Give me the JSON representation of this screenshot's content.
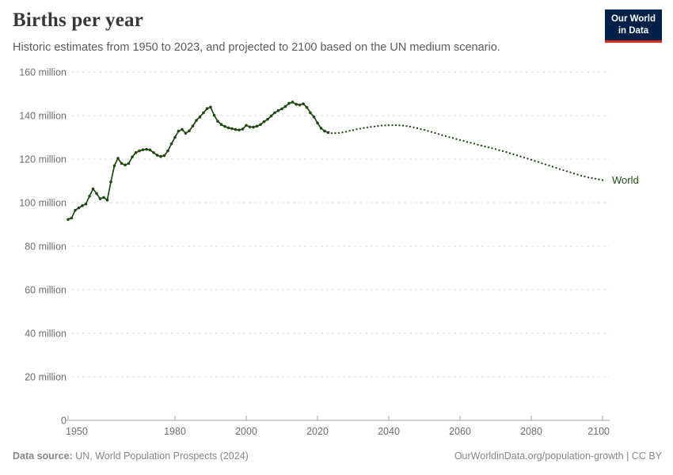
{
  "header": {
    "title": "Births per year",
    "subtitle": "Historic estimates from 1950 to 2023, and projected to 2100 based on the UN medium scenario.",
    "logo": {
      "line1": "Our World",
      "line2": "in Data",
      "bg_color": "#002147",
      "stripe_color": "#dc2d1f"
    }
  },
  "chart_data": {
    "type": "line",
    "title": "Births per year",
    "xlabel": "",
    "ylabel": "",
    "unit": "million",
    "ylim": [
      0,
      160
    ],
    "y_ticks": [
      0,
      20,
      40,
      60,
      80,
      100,
      120,
      140,
      160
    ],
    "x_ticks": [
      1950,
      1980,
      2000,
      2020,
      2040,
      2060,
      2080,
      2100
    ],
    "grid": true,
    "legend_position": "end-of-line",
    "entity_label": "World",
    "line_color": "#1d4a0f",
    "series": [
      {
        "name": "World",
        "historic": {
          "start_year": 1950,
          "style": "solid-with-markers",
          "values": [
            92.3,
            93.0,
            96.5,
            97.6,
            98.6,
            99.4,
            103.0,
            106.3,
            104.2,
            101.8,
            102.4,
            101.2,
            109.5,
            117.0,
            120.4,
            118.0,
            117.3,
            118.0,
            121.0,
            123.0,
            123.8,
            124.3,
            124.5,
            124.2,
            123.0,
            121.8,
            121.2,
            121.6,
            123.8,
            127.0,
            130.0,
            132.9,
            133.6,
            131.9,
            133.0,
            135.2,
            137.8,
            139.4,
            141.3,
            143.2,
            143.9,
            140.1,
            137.4,
            135.9,
            135.0,
            134.4,
            134.0,
            133.6,
            133.4,
            133.8,
            135.5,
            134.8,
            134.7,
            135.1,
            135.9,
            137.2,
            138.3,
            139.8,
            141.3,
            142.3,
            143.1,
            144.2,
            145.6,
            146.2,
            145.2,
            144.9,
            145.4,
            143.8,
            141.3,
            139.4,
            136.6,
            134.2,
            132.9,
            132.2
          ]
        },
        "projection": {
          "start_year": 2023,
          "style": "dotted",
          "values": [
            132.2,
            131.9,
            131.9,
            132.0,
            132.3,
            132.6,
            133.0,
            133.3,
            133.7,
            134.0,
            134.3,
            134.6,
            134.8,
            135.0,
            135.2,
            135.4,
            135.5,
            135.6,
            135.6,
            135.6,
            135.5,
            135.4,
            135.2,
            134.9,
            134.6,
            134.2,
            133.8,
            133.4,
            132.9,
            132.5,
            132.0,
            131.5,
            131.0,
            130.6,
            130.1,
            129.7,
            129.2,
            128.8,
            128.4,
            127.9,
            127.5,
            127.1,
            126.6,
            126.2,
            125.8,
            125.4,
            125.0,
            124.6,
            124.1,
            123.7,
            123.2,
            122.7,
            122.2,
            121.7,
            121.2,
            120.7,
            120.2,
            119.7,
            119.2,
            118.7,
            118.1,
            117.6,
            117.1,
            116.5,
            116.0,
            115.4,
            114.9,
            114.4,
            113.9,
            113.4,
            112.9,
            112.4,
            112.0,
            111.6,
            111.3,
            111.0,
            110.7,
            110.4
          ]
        }
      }
    ]
  },
  "footer": {
    "source_label": "Data source:",
    "source_text": " UN, World Population Prospects (2024)",
    "right_text": "OurWorldinData.org/population-growth | CC BY"
  }
}
